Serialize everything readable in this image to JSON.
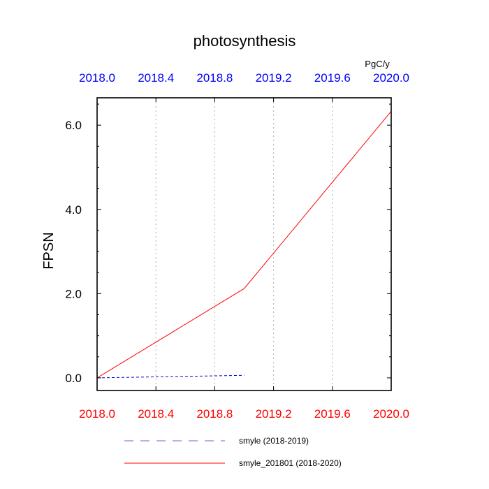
{
  "chart_data": {
    "type": "line",
    "title": "photosynthesis",
    "units": "PgC/y",
    "ylabel": "FPSN",
    "xlabel": "",
    "xlim": [
      2018.0,
      2020.0
    ],
    "ylim": [
      -0.3,
      6.65
    ],
    "x_ticks": [
      2018.0,
      2018.4,
      2018.8,
      2019.2,
      2019.6,
      2020.0
    ],
    "x_tick_labels": [
      "2018.0",
      "2018.4",
      "2018.8",
      "2019.2",
      "2019.6",
      "2020.0"
    ],
    "y_ticks": [
      0.0,
      2.0,
      4.0,
      6.0
    ],
    "y_tick_labels": [
      "0.0",
      "2.0",
      "4.0",
      "6.0"
    ],
    "grid": "vertical dotted",
    "colors": {
      "top_axis_labels": "#0000ff",
      "bottom_axis_labels": "#ff0000"
    },
    "series": [
      {
        "name": "smyle (2018-2019)",
        "color": "#0000cc",
        "style": "dashed",
        "x": [
          2018.0,
          2019.0
        ],
        "y": [
          0.0,
          0.06
        ]
      },
      {
        "name": "smyle_201801 (2018-2020)",
        "color": "#ff0000",
        "style": "solid",
        "x": [
          2018.0,
          2019.0,
          2020.0
        ],
        "y": [
          0.0,
          2.12,
          6.33
        ]
      }
    ],
    "legend": "bottom"
  }
}
